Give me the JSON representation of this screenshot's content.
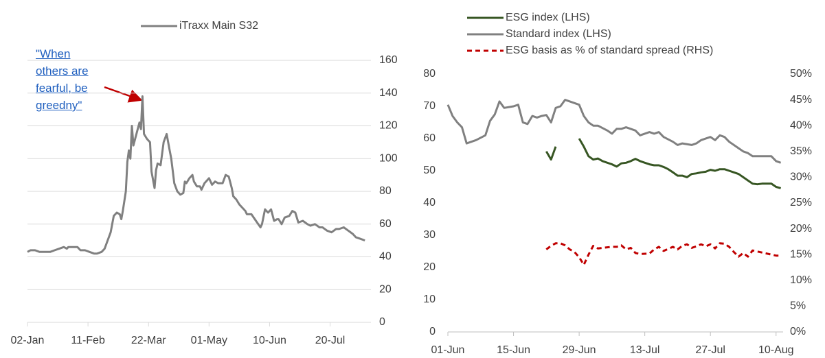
{
  "chart_data": [
    {
      "type": "line",
      "annotation": "\"When others are fearful, be greedny\"",
      "grid": true,
      "legend": "top",
      "xlim": [
        0,
        227
      ],
      "xticks": [
        {
          "value": 0,
          "label": "02-Jan"
        },
        {
          "value": 40,
          "label": "11-Feb"
        },
        {
          "value": 80,
          "label": "22-Mar"
        },
        {
          "value": 120,
          "label": "01-May"
        },
        {
          "value": 160,
          "label": "10-Jun"
        },
        {
          "value": 200,
          "label": "20-Jul"
        }
      ],
      "ylim": [
        0,
        160
      ],
      "yticks": [
        0,
        20,
        40,
        60,
        80,
        100,
        120,
        140,
        160
      ],
      "series": [
        {
          "name": "iTraxx Main S32",
          "color": "#808080",
          "x": [
            0,
            2,
            5,
            8,
            11,
            15,
            18,
            21,
            24,
            26,
            27,
            30,
            33,
            35,
            38,
            41,
            44,
            46,
            49,
            51,
            53,
            55,
            57,
            59,
            61,
            62,
            63,
            65,
            66,
            67,
            68,
            69,
            70,
            72,
            74,
            75,
            76,
            77,
            79,
            81,
            82,
            84,
            85,
            86,
            88,
            90,
            92,
            94,
            95,
            97,
            99,
            101,
            103,
            104,
            105,
            107,
            109,
            110,
            112,
            114,
            115,
            117,
            119,
            120,
            122,
            124,
            126,
            129,
            131,
            133,
            135,
            136,
            138,
            140,
            142,
            144,
            145,
            148,
            151,
            154,
            155,
            157,
            159,
            161,
            163,
            165,
            166,
            168,
            170,
            173,
            175,
            177,
            179,
            182,
            185,
            187,
            190,
            193,
            195,
            198,
            201,
            204,
            206,
            209,
            212,
            215,
            217,
            220,
            223
          ],
          "values": [
            43,
            44,
            44,
            43,
            43,
            43,
            44,
            45,
            46,
            45,
            46,
            46,
            46,
            44,
            44,
            43,
            42,
            42,
            43,
            45,
            50,
            55,
            65,
            67,
            66,
            63,
            68,
            80,
            98,
            105,
            100,
            120,
            108,
            115,
            122,
            118,
            138,
            115,
            112,
            110,
            92,
            82,
            93,
            97,
            96,
            110,
            115,
            105,
            100,
            85,
            80,
            78,
            79,
            86,
            85,
            88,
            90,
            86,
            83,
            83,
            81,
            85,
            87,
            88,
            84,
            86,
            85,
            85,
            90,
            89,
            82,
            77,
            75,
            72,
            70,
            68,
            66,
            66,
            62,
            58,
            60,
            69,
            67,
            69,
            62,
            63,
            63,
            60,
            64,
            65,
            68,
            67,
            61,
            62,
            60,
            59,
            60,
            58,
            58,
            56,
            55,
            57,
            57,
            58,
            56,
            54,
            52,
            51,
            50
          ]
        }
      ]
    },
    {
      "type": "line",
      "grid": false,
      "legend": "top-left",
      "xlim": [
        0,
        71.5
      ],
      "xticks": [
        {
          "value": 0,
          "label": "01-Jun"
        },
        {
          "value": 14,
          "label": "15-Jun"
        },
        {
          "value": 28,
          "label": "29-Jun"
        },
        {
          "value": 42,
          "label": "13-Jul"
        },
        {
          "value": 56,
          "label": "27-Jul"
        },
        {
          "value": 70,
          "label": "10-Aug"
        }
      ],
      "ylim": [
        0,
        80
      ],
      "yticks": [
        0,
        10,
        20,
        30,
        40,
        50,
        60,
        70,
        80
      ],
      "y2lim": [
        0,
        50
      ],
      "y2ticks": [
        {
          "value": 0,
          "label": "0%"
        },
        {
          "value": 5,
          "label": "5%"
        },
        {
          "value": 10,
          "label": "10%"
        },
        {
          "value": 15,
          "label": "15%"
        },
        {
          "value": 20,
          "label": "20%"
        },
        {
          "value": 25,
          "label": "25%"
        },
        {
          "value": 30,
          "label": "30%"
        },
        {
          "value": 35,
          "label": "35%"
        },
        {
          "value": 40,
          "label": "40%"
        },
        {
          "value": 45,
          "label": "45%"
        },
        {
          "value": 50,
          "label": "50%"
        }
      ],
      "series": [
        {
          "name": "ESG index (LHS)",
          "color": "#375623",
          "style": "solid",
          "x": [
            21,
            22,
            23,
            24,
            28,
            29,
            30,
            31,
            32,
            33,
            35,
            36,
            37,
            38,
            39,
            40,
            41,
            42,
            43,
            44,
            45,
            46,
            47,
            48,
            49,
            50,
            51,
            52,
            53,
            54,
            55,
            56,
            57,
            58,
            59,
            60,
            61,
            62,
            63,
            64,
            65,
            66,
            67,
            68,
            69,
            70,
            71
          ],
          "values": [
            56,
            53.5,
            57.5,
            null,
            60,
            57.5,
            54.5,
            53.5,
            53.8,
            53,
            52,
            51.3,
            52.3,
            52.5,
            53,
            53.7,
            53,
            52.5,
            52,
            51.7,
            51.7,
            51.2,
            50.5,
            49.5,
            48.5,
            48.5,
            48,
            49,
            49.2,
            49.5,
            49.7,
            50.3,
            50,
            50.5,
            50.5,
            50,
            49.5,
            49,
            48,
            47,
            46,
            45.8,
            46,
            46,
            46,
            45,
            44.6
          ]
        },
        {
          "name": "Standard index (LHS)",
          "color": "#808080",
          "style": "solid",
          "x": [
            0,
            1,
            2,
            3,
            4,
            6,
            8,
            9,
            10,
            11,
            12,
            14,
            15,
            16,
            17,
            18,
            19,
            20,
            21,
            22,
            23,
            24,
            25,
            26,
            28,
            29,
            30,
            31,
            32,
            34,
            35,
            36,
            37,
            38,
            40,
            41,
            43,
            44,
            45,
            46,
            48,
            49,
            50,
            52,
            53,
            54,
            56,
            57,
            58,
            59,
            60,
            62,
            63,
            64,
            65,
            67,
            68,
            69,
            70,
            71
          ],
          "values": [
            70.5,
            67,
            65,
            63.5,
            58.5,
            59.5,
            61,
            65.5,
            67.5,
            71.5,
            69.5,
            70,
            70.5,
            65,
            64.5,
            67,
            66.5,
            67,
            67.3,
            65,
            69.5,
            70,
            72,
            71.5,
            70.5,
            67,
            65,
            64,
            64,
            62.5,
            61.5,
            63,
            63,
            63.5,
            62.5,
            61,
            62,
            61.5,
            62,
            60.5,
            59,
            58,
            58.5,
            58,
            58.5,
            59.5,
            60.5,
            59.5,
            61,
            60.5,
            59,
            57,
            56,
            55.5,
            54.5,
            54.5,
            54.5,
            54.5,
            53,
            52.5
          ]
        },
        {
          "name": "ESG basis as % of standard spread (RHS)",
          "color": "#c00000",
          "style": "dashed",
          "axis": "y2",
          "x": [
            21,
            22,
            23,
            24,
            25,
            26,
            27,
            28,
            29,
            30,
            31,
            32,
            33,
            35,
            36,
            37,
            38,
            39,
            40,
            41,
            43,
            44,
            45,
            46,
            48,
            49,
            50,
            51,
            52,
            53,
            54,
            55,
            56,
            57,
            58,
            59,
            60,
            61,
            62,
            63,
            64,
            65,
            66,
            67,
            68,
            69,
            70,
            71
          ],
          "values": [
            16,
            16.7,
            17.2,
            17.2,
            16.8,
            16,
            15.5,
            14.5,
            13,
            15,
            16.7,
            16.2,
            16.3,
            16.5,
            16.5,
            16.8,
            16,
            16.3,
            15.3,
            15.1,
            15.2,
            16,
            16.5,
            15.7,
            16.5,
            16,
            16.7,
            17,
            16.3,
            16.6,
            17,
            16.6,
            17,
            16.2,
            17.2,
            17.1,
            16.5,
            15.5,
            14.6,
            15.3,
            14.6,
            15.8,
            15.6,
            15.4,
            15.2,
            15,
            14.8,
            14.8
          ]
        }
      ]
    }
  ]
}
